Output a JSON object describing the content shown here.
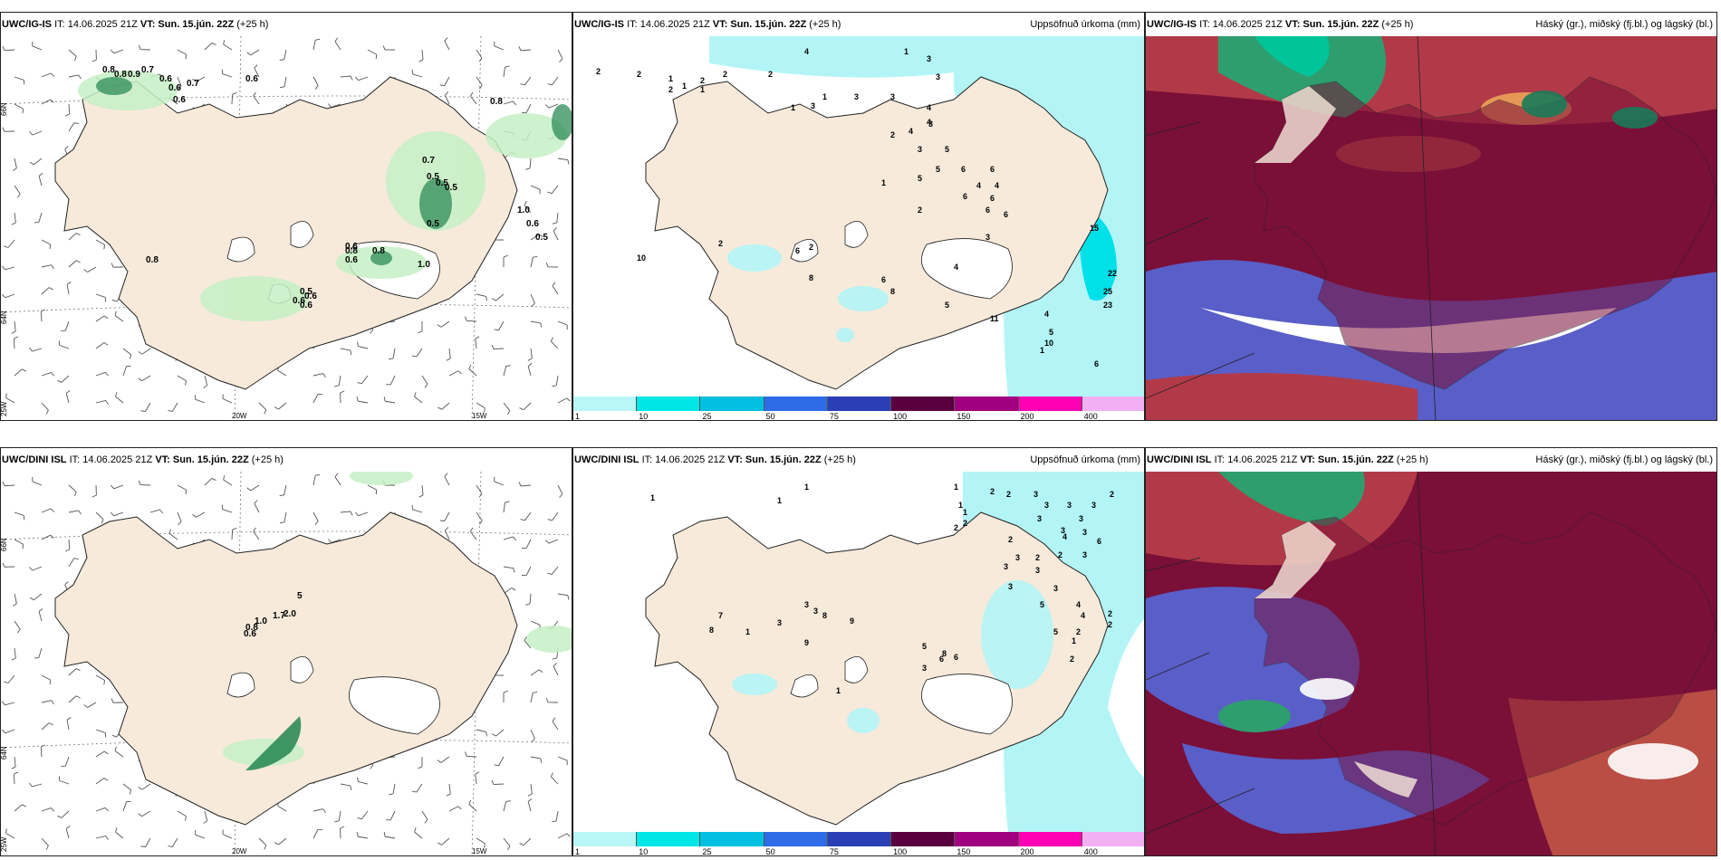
{
  "panels": [
    {
      "model": "UWC/IG-IS",
      "it": "IT: 14.06.2025 21Z",
      "vt_label": "VT:",
      "vt": "Sun. 15.jún. 22Z",
      "lead": "(+25 h)",
      "title_right": ""
    },
    {
      "model": "UWC/IG-IS",
      "it": "IT: 14.06.2025 21Z",
      "vt_label": "VT:",
      "vt": "Sun. 15.jún. 22Z",
      "lead": "(+25 h)",
      "title_right": "Uppsöfnuð úrkoma (mm)"
    },
    {
      "model": "UWC/IG-IS",
      "it": "IT: 14.06.2025 21Z",
      "vt_label": "VT:",
      "vt": "Sun. 15.jún. 22Z",
      "lead": "(+25 h)",
      "title_right": "Háský (gr.), miðský (fj.bl.) og lágský (bl.)"
    },
    {
      "model": "UWC/DINI ISL",
      "it": "IT: 14.06.2025 21Z",
      "vt_label": "VT:",
      "vt": "Sun. 15.jún. 22Z",
      "lead": "(+25 h)",
      "title_right": ""
    },
    {
      "model": "UWC/DINI ISL",
      "it": "IT: 14.06.2025 21Z",
      "vt_label": "VT:",
      "vt": "Sun. 15.jún. 22Z",
      "lead": "(+25 h)",
      "title_right": "Uppsöfnuð úrkoma (mm)"
    },
    {
      "model": "UWC/DINI ISL",
      "it": "IT: 14.06.2025 21Z",
      "vt_label": "VT:",
      "vt": "Sun. 15.jún. 22Z",
      "lead": "(+25 h)",
      "title_right": "Háský (gr.), miðský (fj.bl.) og lágský (bl.)"
    }
  ],
  "grid_labels": {
    "lat66": "66N",
    "lat64": "64N",
    "lon25": "25W",
    "lon20": "20W",
    "lon15": "15W"
  },
  "colorbar": {
    "labels": [
      "1",
      "10",
      "25",
      "50",
      "75",
      "100",
      "150",
      "200",
      "400"
    ],
    "colors": [
      "#b9f7f7",
      "#00e6e6",
      "#00bfe0",
      "#2e6be6",
      "#2a3fb5",
      "#5a0040",
      "#a00080",
      "#ff00b4",
      "#f2b0f2"
    ]
  },
  "colors": {
    "land": "#f7eadb",
    "sea_precip": "#b3f5f7",
    "heavy_precip": "#00e0e8",
    "green_light": "#c5f0c5",
    "green_dark": "#2e8b57",
    "cloud_high": "#7a0f38",
    "cloud_mid": "#2e9e6e",
    "cloud_low": "#5a5ec8"
  },
  "top_wind_labels": [
    "0.8",
    "0.8",
    "0.9",
    "0.7",
    "0.6",
    "0.6",
    "0.6",
    "0.7",
    "0.6",
    "0.8",
    "0.7",
    "0.5",
    "0.5",
    "0.5",
    "0.5",
    "1.0",
    "0.6",
    "0.5",
    "0.8",
    "0.8",
    "0.6",
    "0.6",
    "1.0",
    "0.8",
    "0.5",
    "0.6",
    "0.6",
    "0.6"
  ],
  "top_precip_labels": [
    "4",
    "1",
    "2",
    "2",
    "1",
    "1",
    "2",
    "2",
    "2",
    "1",
    "1",
    "1",
    "2",
    "3",
    "3",
    "3",
    "3",
    "3",
    "4",
    "4",
    "4",
    "2",
    "3",
    "3",
    "5",
    "5",
    "6",
    "6",
    "5",
    "4",
    "4",
    "6",
    "6",
    "6",
    "6",
    "1",
    "2",
    "3",
    "15",
    "22",
    "25",
    "23",
    "4",
    "5",
    "10",
    "1",
    "2",
    "10",
    "8",
    "2",
    "6",
    "6",
    "8",
    "4",
    "5",
    "11",
    "6"
  ],
  "bot_wind_labels": [
    "5",
    "2.0",
    "1.7",
    "1.0",
    "0.8",
    "0.6"
  ],
  "bot_precip_labels": [
    "1",
    "1",
    "1",
    "1",
    "1",
    "1",
    "2",
    "2",
    "2",
    "2",
    "3",
    "3",
    "3",
    "2",
    "3",
    "3",
    "3",
    "3",
    "4",
    "3",
    "6",
    "3",
    "2",
    "2",
    "2",
    "3",
    "3",
    "3",
    "3",
    "3",
    "5",
    "4",
    "4",
    "2",
    "2",
    "2",
    "5",
    "1",
    "2",
    "7",
    "8",
    "1",
    "3",
    "3",
    "3",
    "8",
    "9",
    "9",
    "5",
    "8",
    "6",
    "6",
    "3",
    "1"
  ]
}
